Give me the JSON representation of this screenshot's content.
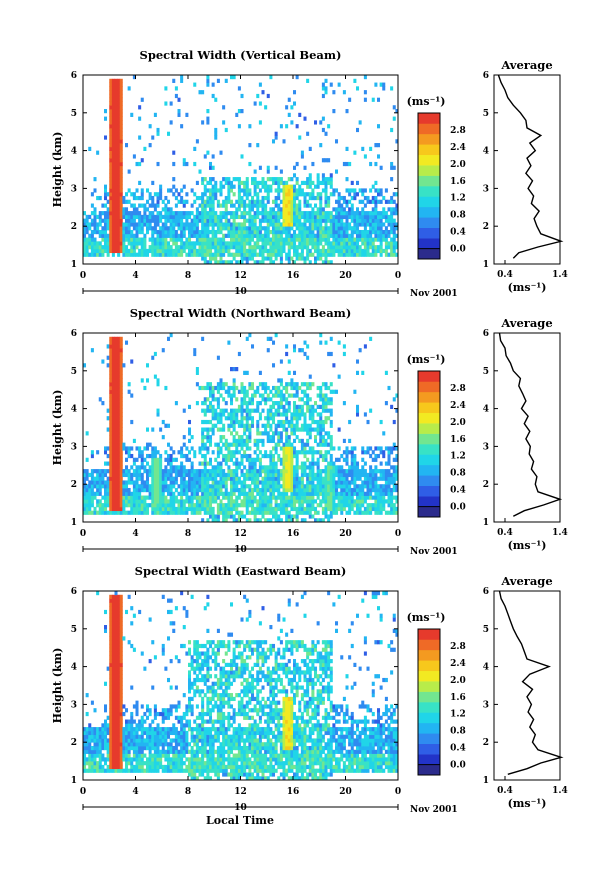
{
  "figure": {
    "xlabel": "Local Time",
    "date_label_row": "10",
    "colorbar_unit": "(ms⁻¹)",
    "average_title": "Average",
    "average_xlabel": "(ms⁻¹)"
  },
  "colors": {
    "scale": [
      "#2b2b8c",
      "#2233c8",
      "#2f5ee6",
      "#2f8bf0",
      "#22b5f2",
      "#20d5e8",
      "#38e2c6",
      "#72e690",
      "#b8ec4a",
      "#f2ea22",
      "#f7c81c",
      "#f49a20",
      "#ef6a26",
      "#e63a2c"
    ],
    "background": "#ffffff"
  },
  "chart_data": [
    {
      "type": "heatmap",
      "title": "Spectral Width (Vertical Beam)",
      "ylabel": "Height (km)",
      "date_label": "Nov 2001",
      "xlim": [
        0,
        24
      ],
      "ylim": [
        1,
        6
      ],
      "xticks": [
        "0",
        "4",
        "8",
        "12",
        "16",
        "20",
        "0"
      ],
      "yticks": [
        "1",
        "2",
        "3",
        "4",
        "5",
        "6"
      ],
      "colorbar_ticks": [
        "0.0",
        "0.4",
        "0.8",
        "1.2",
        "1.6",
        "2.0",
        "2.4",
        "2.8"
      ],
      "colorbar_range": [
        0,
        3
      ],
      "features": {
        "columns": [
          [
            2.5,
            1.3,
            5.9,
            3.0
          ],
          [
            15.6,
            2.0,
            3.1,
            2.1
          ]
        ],
        "activity_window": [
          9,
          19
        ],
        "strat_top": 3.3
      },
      "profile": {
        "xlim": [
          0.2,
          1.4
        ],
        "xticks": [
          "0.4",
          "1.4"
        ],
        "heights": [
          1.15,
          1.3,
          1.45,
          1.6,
          1.8,
          2.0,
          2.2,
          2.4,
          2.6,
          2.8,
          3.0,
          3.2,
          3.4,
          3.6,
          3.8,
          4.0,
          4.2,
          4.4,
          4.6,
          4.8,
          5.0,
          5.2,
          5.4,
          5.6,
          5.8,
          6.0
        ],
        "values": [
          0.55,
          0.65,
          1.0,
          1.42,
          1.05,
          0.98,
          0.93,
          1.02,
          0.88,
          0.92,
          0.82,
          0.9,
          0.78,
          0.87,
          0.8,
          0.95,
          0.85,
          1.05,
          0.8,
          0.78,
          0.68,
          0.55,
          0.45,
          0.4,
          0.33,
          0.28
        ]
      }
    },
    {
      "type": "heatmap",
      "title": "Spectral Width (Northward Beam)",
      "ylabel": "Height (km)",
      "date_label": "Nov 2001",
      "xlim": [
        0,
        24
      ],
      "ylim": [
        1,
        6
      ],
      "xticks": [
        "0",
        "4",
        "8",
        "12",
        "16",
        "20",
        "0"
      ],
      "yticks": [
        "1",
        "2",
        "3",
        "4",
        "5",
        "6"
      ],
      "colorbar_ticks": [
        "0.0",
        "0.4",
        "0.8",
        "1.2",
        "1.6",
        "2.0",
        "2.4",
        "2.8"
      ],
      "colorbar_range": [
        0,
        3
      ],
      "features": {
        "columns": [
          [
            2.5,
            1.3,
            5.9,
            3.0
          ],
          [
            15.6,
            1.8,
            3.0,
            2.0
          ],
          [
            5.6,
            1.5,
            2.7,
            1.6
          ],
          [
            18.8,
            1.5,
            2.5,
            1.5
          ]
        ],
        "activity_window": [
          9,
          19
        ],
        "strat_top": 4.7
      },
      "profile": {
        "xlim": [
          0.2,
          1.4
        ],
        "xticks": [
          "0.4",
          "1.4"
        ],
        "heights": [
          1.15,
          1.3,
          1.45,
          1.6,
          1.8,
          2.0,
          2.2,
          2.4,
          2.6,
          2.8,
          3.0,
          3.2,
          3.4,
          3.6,
          3.8,
          4.0,
          4.2,
          4.4,
          4.6,
          4.8,
          5.0,
          5.2,
          5.4,
          5.6,
          5.8,
          6.0
        ],
        "values": [
          0.55,
          0.75,
          1.1,
          1.4,
          1.0,
          0.95,
          0.98,
          0.88,
          0.92,
          0.84,
          0.86,
          0.78,
          0.85,
          0.75,
          0.82,
          0.7,
          0.78,
          0.72,
          0.65,
          0.68,
          0.55,
          0.5,
          0.42,
          0.4,
          0.32,
          0.3
        ]
      }
    },
    {
      "type": "heatmap",
      "title": "Spectral Width (Eastward Beam)",
      "ylabel": "Height (km)",
      "date_label": "Nov 2001",
      "xlim": [
        0,
        24
      ],
      "ylim": [
        1,
        6
      ],
      "xticks": [
        "0",
        "4",
        "8",
        "12",
        "16",
        "20",
        "0"
      ],
      "yticks": [
        "1",
        "2",
        "3",
        "4",
        "5",
        "6"
      ],
      "colorbar_ticks": [
        "0.0",
        "0.4",
        "0.8",
        "1.2",
        "1.6",
        "2.0",
        "2.4",
        "2.8"
      ],
      "colorbar_range": [
        0,
        3
      ],
      "features": {
        "columns": [
          [
            2.5,
            1.3,
            5.9,
            3.0
          ],
          [
            15.6,
            1.8,
            3.2,
            2.1
          ]
        ],
        "activity_window": [
          8,
          19
        ],
        "strat_top": 4.7
      },
      "profile": {
        "xlim": [
          0.2,
          1.4
        ],
        "xticks": [
          "0.4",
          "1.4"
        ],
        "heights": [
          1.15,
          1.3,
          1.45,
          1.6,
          1.8,
          2.0,
          2.2,
          2.4,
          2.6,
          2.8,
          3.0,
          3.2,
          3.4,
          3.6,
          3.8,
          4.0,
          4.2,
          4.4,
          4.6,
          4.8,
          5.0,
          5.2,
          5.4,
          5.6,
          5.8,
          6.0
        ],
        "values": [
          0.45,
          0.8,
          1.05,
          1.42,
          1.0,
          0.9,
          0.95,
          0.85,
          0.92,
          0.82,
          0.88,
          0.8,
          0.9,
          0.72,
          0.85,
          1.2,
          0.8,
          0.75,
          0.7,
          0.62,
          0.55,
          0.5,
          0.45,
          0.4,
          0.33,
          0.3
        ]
      }
    }
  ]
}
